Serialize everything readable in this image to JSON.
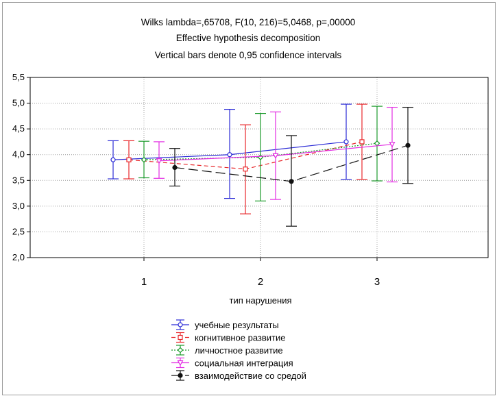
{
  "chart_data": {
    "type": "line",
    "title_lines": [
      "Wilks lambda=,65708, F(10, 216)=5,0468, p=,00000",
      "Effective hypothesis decomposition",
      "Vertical bars denote 0,95 confidence intervals"
    ],
    "xlabel": "тип нарушения",
    "ylabel": "",
    "categories": [
      "1",
      "2",
      "3"
    ],
    "ylim": [
      2.0,
      5.5
    ],
    "yticks": [
      "2,0",
      "2,5",
      "3,0",
      "3,5",
      "4,0",
      "4,5",
      "5,0",
      "5,5"
    ],
    "grid": true,
    "legend_position": "bottom",
    "series": [
      {
        "name": "учебные результаты",
        "color": "#2b2bd6",
        "dash": "solid",
        "marker": "circle-open",
        "values": [
          3.9,
          4.0,
          4.25
        ],
        "lower": [
          3.53,
          3.15,
          3.52
        ],
        "upper": [
          4.27,
          4.88,
          4.98
        ]
      },
      {
        "name": "когнитивное развитие",
        "color": "#e8262a",
        "dash": "6,4",
        "marker": "square-open",
        "values": [
          3.9,
          3.72,
          4.25
        ],
        "lower": [
          3.53,
          2.85,
          3.52
        ],
        "upper": [
          4.27,
          4.58,
          4.98
        ]
      },
      {
        "name": "личностное развитие",
        "color": "#1a9a2a",
        "dash": "2,2",
        "marker": "diamond-open",
        "values": [
          3.9,
          3.95,
          4.22
        ],
        "lower": [
          3.55,
          3.1,
          3.49
        ],
        "upper": [
          4.26,
          4.8,
          4.94
        ]
      },
      {
        "name": "социальная интеграция",
        "color": "#e22be2",
        "dash": "solid",
        "marker": "triangle-open",
        "values": [
          3.88,
          3.98,
          4.2
        ],
        "lower": [
          3.54,
          3.13,
          3.47
        ],
        "upper": [
          4.25,
          4.83,
          4.92
        ]
      },
      {
        "name": "взаимодействие со средой",
        "color": "#111111",
        "dash": "14,6",
        "marker": "circle-filled",
        "values": [
          3.75,
          3.48,
          4.18
        ],
        "lower": [
          3.39,
          2.61,
          3.44
        ],
        "upper": [
          4.12,
          4.37,
          4.92
        ]
      }
    ]
  }
}
